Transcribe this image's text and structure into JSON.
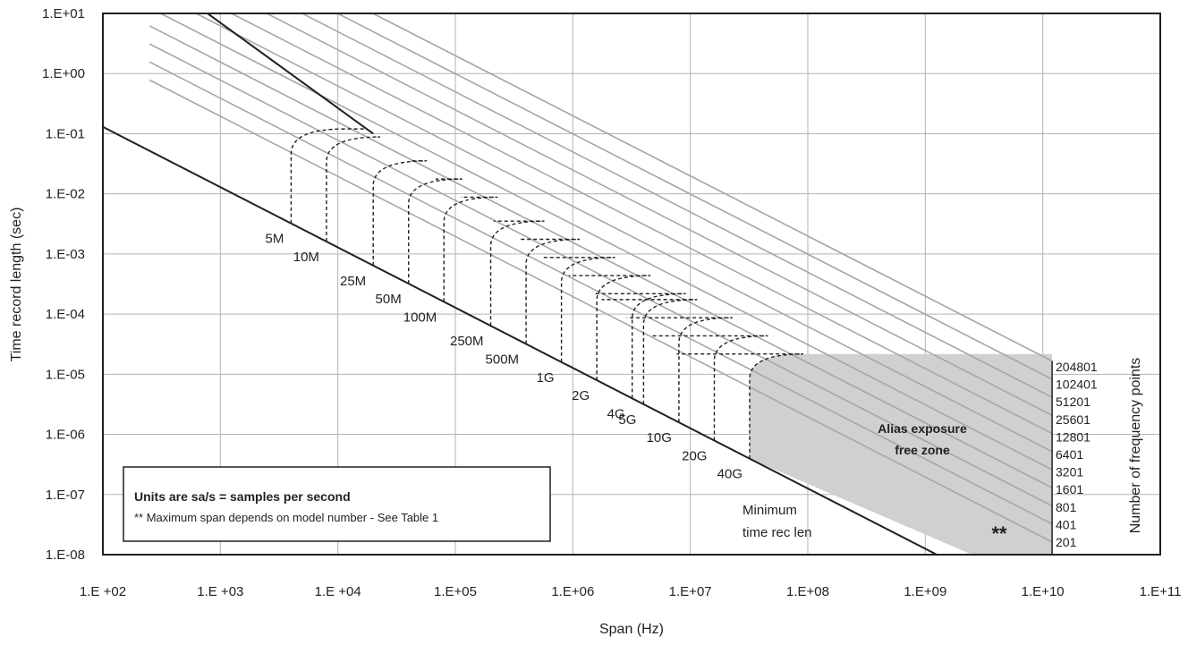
{
  "chart_data": {
    "type": "line",
    "x_scale": "log",
    "y_scale": "log",
    "xlim": [
      100,
      100000000000
    ],
    "ylim": [
      1e-08,
      10
    ],
    "xlabel": "Span (Hz)",
    "ylabel": "Time record length (sec)",
    "y2label": "Number of frequency points",
    "grid": true,
    "x_ticks": [
      "1.E +02",
      "1.E +03",
      "1.E +04",
      "1.E+05",
      "1.E+06",
      "1.E+07",
      "1.E+08",
      "1.E+09",
      "1.E+10",
      "1.E+11"
    ],
    "y_ticks": [
      "1.E+01",
      "1.E+00",
      "1.E-01",
      "1.E-02",
      "1.E-03",
      "1.E-04",
      "1.E-05",
      "1.E-06",
      "1.E-07",
      "1.E-08"
    ],
    "frequency_points": [
      "204801",
      "102401",
      "51201",
      "25601",
      "12801",
      "6401",
      "3201",
      "1601",
      "801",
      "401",
      "201"
    ],
    "frequency_point_values": [
      204801,
      102401,
      51201,
      25601,
      12801,
      6401,
      3201,
      1601,
      801,
      401,
      201
    ],
    "sample_rate_labels": [
      "5M",
      "10M",
      "25M",
      "50M",
      "100M",
      "250M",
      "500M",
      "1G",
      "2G",
      "4G",
      "5G",
      "10G",
      "20G",
      "40G"
    ],
    "sample_rates": [
      5000000,
      10000000,
      25000000,
      50000000,
      100000000,
      250000000,
      500000000,
      1000000000,
      2000000000,
      4000000000,
      5000000000,
      10000000000,
      20000000000,
      40000000000
    ],
    "boundaries": [
      {
        "x": [
          250,
          20000
        ],
        "y": [
          50,
          0.1
        ]
      },
      {
        "x": [
          100,
          2500000000
        ],
        "y": [
          0.13,
          5e-09
        ]
      }
    ],
    "annotations": {
      "zone_label_line1": "Alias exposure",
      "zone_label_line2": "free zone",
      "min_line1": "Minimum",
      "min_line2": "time rec len",
      "asterisks": "**"
    },
    "notes": {
      "units": "Units are sa/s = samples per second",
      "max_span": "** Maximum span depends on model number - See Table 1"
    },
    "colors": {
      "axes": "#231f20",
      "grid": "#b3b3b3",
      "lines": "#a6a6a6",
      "zone_fill": "#d0d0d0"
    }
  }
}
